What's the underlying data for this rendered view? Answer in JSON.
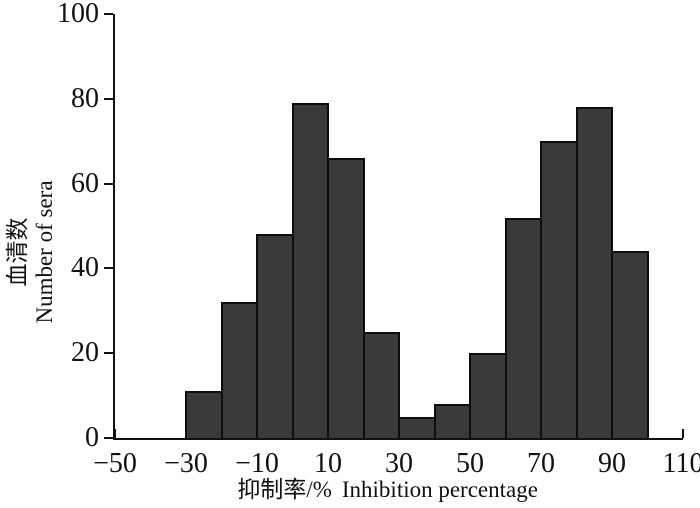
{
  "chart_data": {
    "type": "bar",
    "subtype": "histogram",
    "title": "",
    "xlabel_zh": "抑制率/%",
    "xlabel_en": "Inhibition percentage",
    "ylabel_zh": "血清数",
    "ylabel_en": "Number of sera",
    "bin_start": -30,
    "bin_width": 10,
    "bin_edges": [
      -30,
      -20,
      -10,
      0,
      10,
      20,
      30,
      40,
      50,
      60,
      70,
      80,
      90,
      100
    ],
    "values": [
      11,
      32,
      48,
      79,
      66,
      25,
      5,
      8,
      20,
      52,
      70,
      78,
      44
    ],
    "xlim": [
      -50,
      110
    ],
    "ylim": [
      0,
      100
    ],
    "x_ticks": [
      -50,
      -30,
      -10,
      10,
      30,
      50,
      70,
      90,
      110
    ],
    "x_tick_labels": [
      "−50",
      "−30",
      "−10",
      "10",
      "30",
      "50",
      "70",
      "90",
      "110"
    ],
    "y_ticks": [
      0,
      20,
      40,
      60,
      80,
      100
    ],
    "y_tick_labels": [
      "0",
      "20",
      "40",
      "60",
      "80",
      "100"
    ],
    "grid": false,
    "legend": null,
    "bar_fill": "#3a3a3a",
    "bar_border": "#0d0d0d",
    "axis_color": "#111111",
    "background": "#ffffff"
  }
}
